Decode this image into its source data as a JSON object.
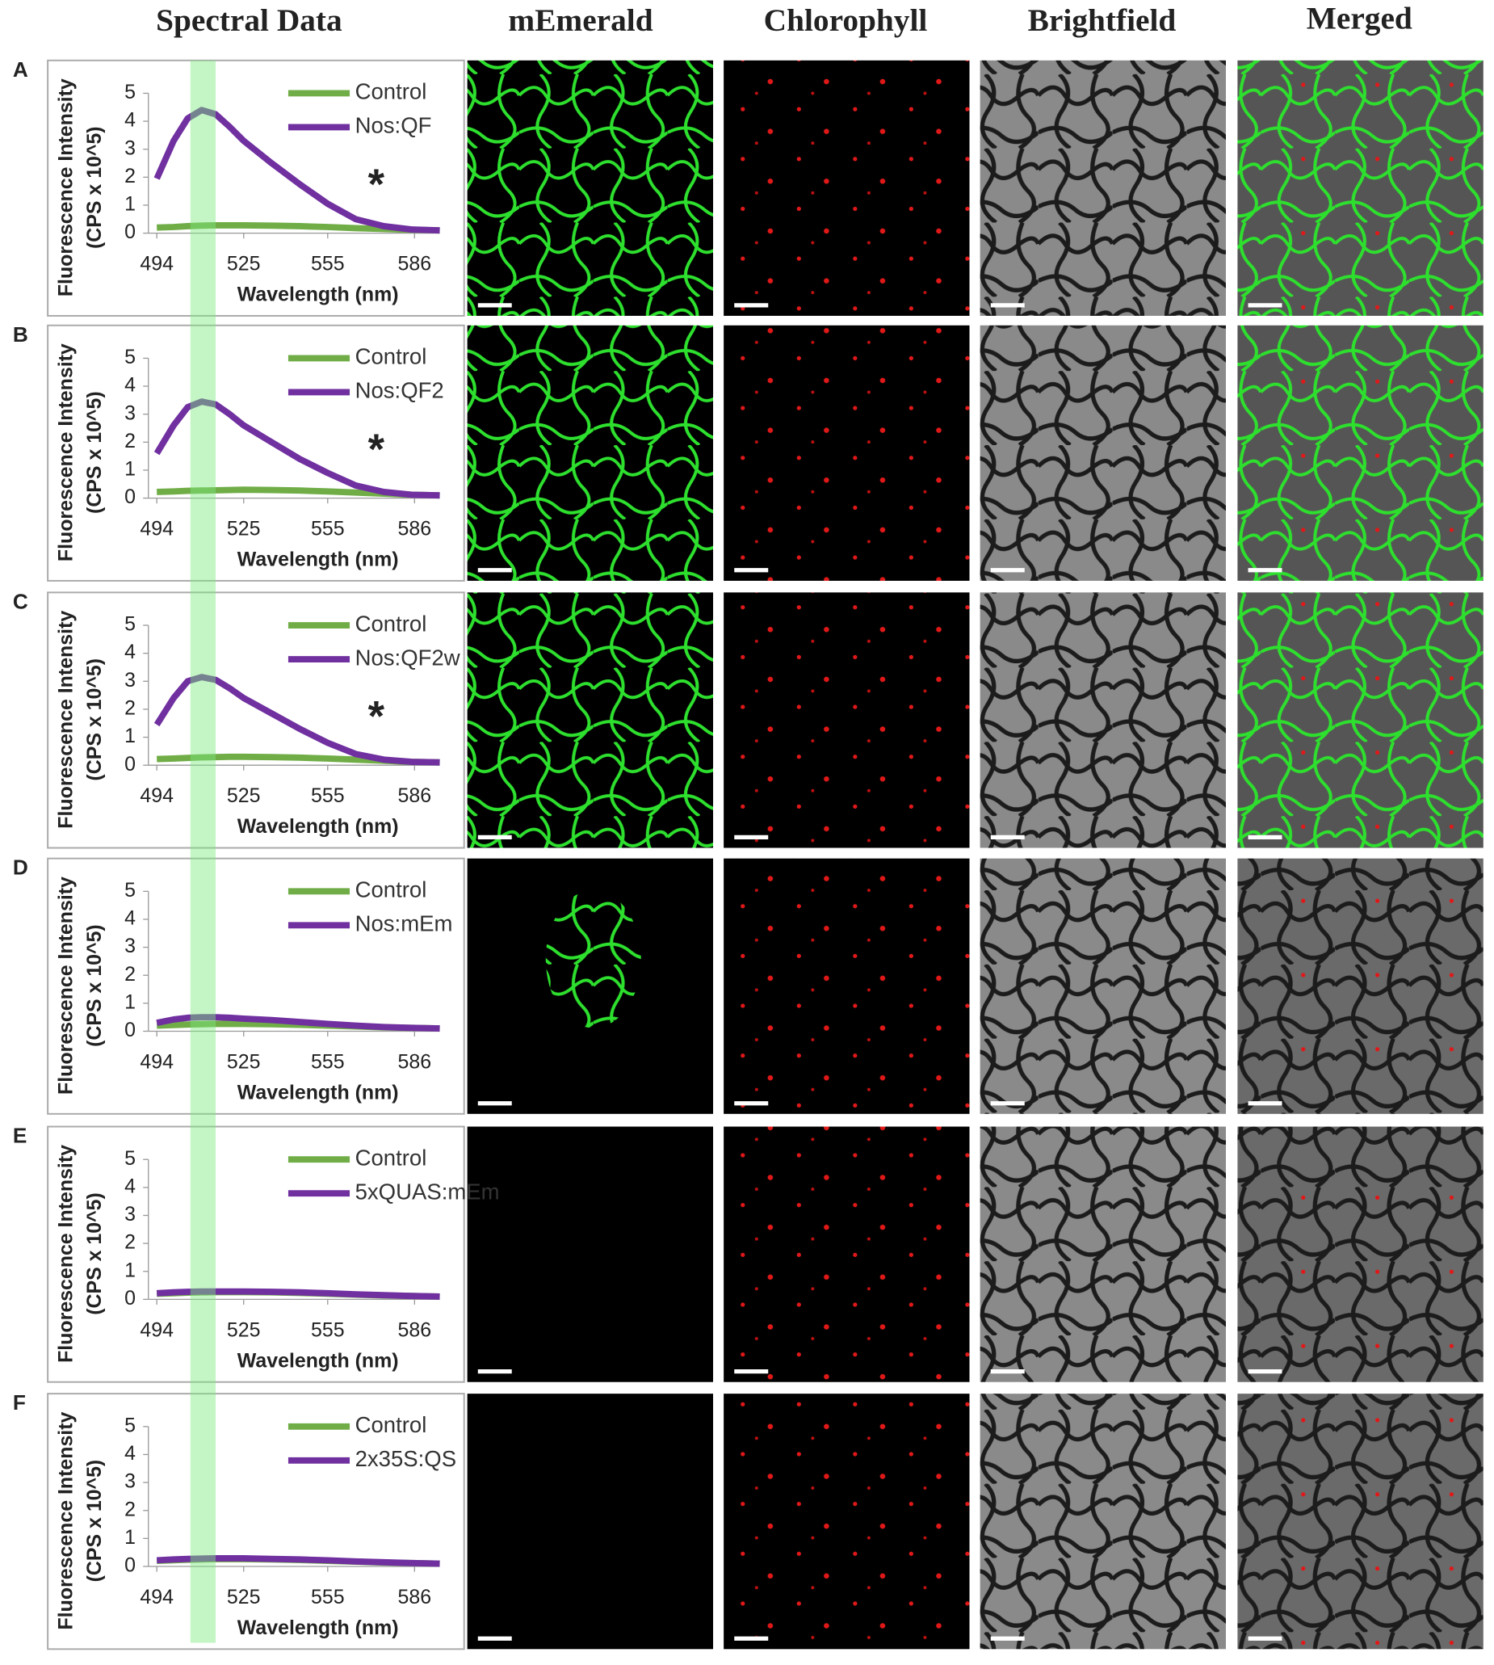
{
  "column_headers": [
    "Spectral Data",
    "mEmerald",
    "Chlorophyll",
    "Brightfield",
    "Merged"
  ],
  "panel_labels": [
    "A",
    "B",
    "C",
    "D",
    "E",
    "F"
  ],
  "highlight_band": [
    506,
    515
  ],
  "chart_data": [
    {
      "type": "line",
      "y_label": "Fluorescence Intensity",
      "y_label_unit": "(CPS x 10^5)",
      "x_label": "Wavelength (nm)",
      "annotation": "*",
      "x": [
        494,
        500,
        505,
        510,
        515,
        520,
        525,
        535,
        545,
        555,
        565,
        575,
        585,
        595
      ],
      "xlim": [
        491,
        595
      ],
      "xticks": [
        494,
        525,
        555,
        586
      ],
      "ylim": [
        0,
        5
      ],
      "yticks": [
        0,
        1,
        2,
        3,
        4,
        5
      ],
      "legend": "upper right",
      "series": [
        {
          "name": "Control",
          "color": "#70ad47",
          "values": [
            0.2,
            0.22,
            0.25,
            0.27,
            0.28,
            0.28,
            0.28,
            0.27,
            0.25,
            0.22,
            0.18,
            0.15,
            0.12,
            0.1
          ]
        },
        {
          "name": "Nos:QF",
          "color": "#7030a0",
          "values": [
            1.95,
            3.3,
            4.1,
            4.4,
            4.25,
            3.8,
            3.3,
            2.5,
            1.75,
            1.05,
            0.5,
            0.25,
            0.13,
            0.1
          ]
        }
      ]
    },
    {
      "type": "line",
      "y_label": "Fluorescence Intensity",
      "y_label_unit": "(CPS x 10^5)",
      "x_label": "Wavelength (nm)",
      "annotation": "*",
      "x": [
        494,
        500,
        505,
        510,
        515,
        520,
        525,
        535,
        545,
        555,
        565,
        575,
        585,
        595
      ],
      "xlim": [
        491,
        595
      ],
      "xticks": [
        494,
        525,
        555,
        586
      ],
      "ylim": [
        0,
        5
      ],
      "yticks": [
        0,
        1,
        2,
        3,
        4,
        5
      ],
      "legend": "upper right",
      "series": [
        {
          "name": "Control",
          "color": "#70ad47",
          "values": [
            0.22,
            0.24,
            0.26,
            0.27,
            0.28,
            0.29,
            0.3,
            0.29,
            0.27,
            0.24,
            0.2,
            0.16,
            0.12,
            0.1
          ]
        },
        {
          "name": "Nos:QF2",
          "color": "#7030a0",
          "values": [
            1.6,
            2.6,
            3.25,
            3.45,
            3.35,
            3.0,
            2.6,
            2.0,
            1.4,
            0.9,
            0.45,
            0.22,
            0.12,
            0.1
          ]
        }
      ]
    },
    {
      "type": "line",
      "y_label": "Fluorescence Intensity",
      "y_label_unit": "(CPS x 10^5)",
      "x_label": "Wavelength (nm)",
      "annotation": "*",
      "x": [
        494,
        500,
        505,
        510,
        515,
        520,
        525,
        535,
        545,
        555,
        565,
        575,
        585,
        595
      ],
      "xlim": [
        491,
        595
      ],
      "xticks": [
        494,
        525,
        555,
        586
      ],
      "ylim": [
        0,
        5
      ],
      "yticks": [
        0,
        1,
        2,
        3,
        4,
        5
      ],
      "legend": "upper right",
      "series": [
        {
          "name": "Control",
          "color": "#70ad47",
          "values": [
            0.22,
            0.24,
            0.26,
            0.28,
            0.29,
            0.3,
            0.3,
            0.29,
            0.27,
            0.24,
            0.2,
            0.16,
            0.12,
            0.1
          ]
        },
        {
          "name": "Nos:QF2w",
          "color": "#7030a0",
          "values": [
            1.45,
            2.4,
            3.0,
            3.15,
            3.05,
            2.75,
            2.4,
            1.85,
            1.3,
            0.8,
            0.4,
            0.2,
            0.12,
            0.1
          ]
        }
      ]
    },
    {
      "type": "line",
      "y_label": "Fluorescence Intensity",
      "y_label_unit": "(CPS x 10^5)",
      "x_label": "Wavelength (nm)",
      "x": [
        494,
        500,
        505,
        510,
        515,
        520,
        525,
        535,
        545,
        555,
        565,
        575,
        585,
        595
      ],
      "xlim": [
        491,
        595
      ],
      "xticks": [
        494,
        525,
        555,
        586
      ],
      "ylim": [
        0,
        5
      ],
      "yticks": [
        0,
        1,
        2,
        3,
        4,
        5
      ],
      "legend": "upper right",
      "series": [
        {
          "name": "Control",
          "color": "#70ad47",
          "values": [
            0.2,
            0.22,
            0.24,
            0.25,
            0.26,
            0.26,
            0.26,
            0.25,
            0.23,
            0.2,
            0.17,
            0.14,
            0.12,
            0.1
          ]
        },
        {
          "name": "Nos:mEm",
          "color": "#7030a0",
          "values": [
            0.3,
            0.42,
            0.48,
            0.5,
            0.5,
            0.48,
            0.45,
            0.4,
            0.33,
            0.26,
            0.2,
            0.15,
            0.12,
            0.1
          ]
        }
      ]
    },
    {
      "type": "line",
      "y_label": "Fluorescence Intensity",
      "y_label_unit": "(CPS x 10^5)",
      "x_label": "Wavelength (nm)",
      "x": [
        494,
        500,
        505,
        510,
        515,
        520,
        525,
        535,
        545,
        555,
        565,
        575,
        585,
        595
      ],
      "xlim": [
        491,
        595
      ],
      "xticks": [
        494,
        525,
        555,
        586
      ],
      "ylim": [
        0,
        5
      ],
      "yticks": [
        0,
        1,
        2,
        3,
        4,
        5
      ],
      "legend": "upper right",
      "series": [
        {
          "name": "Control",
          "color": "#70ad47",
          "values": [
            0.2,
            0.22,
            0.24,
            0.25,
            0.26,
            0.26,
            0.26,
            0.25,
            0.23,
            0.2,
            0.17,
            0.14,
            0.12,
            0.1
          ]
        },
        {
          "name": "5xQUAS:mEm",
          "color": "#7030a0",
          "values": [
            0.22,
            0.25,
            0.27,
            0.28,
            0.28,
            0.28,
            0.28,
            0.27,
            0.25,
            0.22,
            0.18,
            0.15,
            0.12,
            0.1
          ]
        }
      ]
    },
    {
      "type": "line",
      "y_label": "Fluorescence Intensity",
      "y_label_unit": "(CPS x 10^5)",
      "x_label": "Wavelength (nm)",
      "x": [
        494,
        500,
        505,
        510,
        515,
        520,
        525,
        535,
        545,
        555,
        565,
        575,
        585,
        595
      ],
      "xlim": [
        491,
        595
      ],
      "xticks": [
        494,
        525,
        555,
        586
      ],
      "ylim": [
        0,
        5
      ],
      "yticks": [
        0,
        1,
        2,
        3,
        4,
        5
      ],
      "legend": "upper right",
      "series": [
        {
          "name": "Control",
          "color": "#70ad47",
          "values": [
            0.2,
            0.22,
            0.24,
            0.25,
            0.26,
            0.26,
            0.26,
            0.25,
            0.23,
            0.2,
            0.17,
            0.14,
            0.12,
            0.1
          ]
        },
        {
          "name": "2x35S:QS",
          "color": "#7030a0",
          "values": [
            0.22,
            0.25,
            0.27,
            0.28,
            0.29,
            0.29,
            0.29,
            0.27,
            0.25,
            0.22,
            0.18,
            0.15,
            0.12,
            0.1
          ]
        }
      ]
    }
  ]
}
